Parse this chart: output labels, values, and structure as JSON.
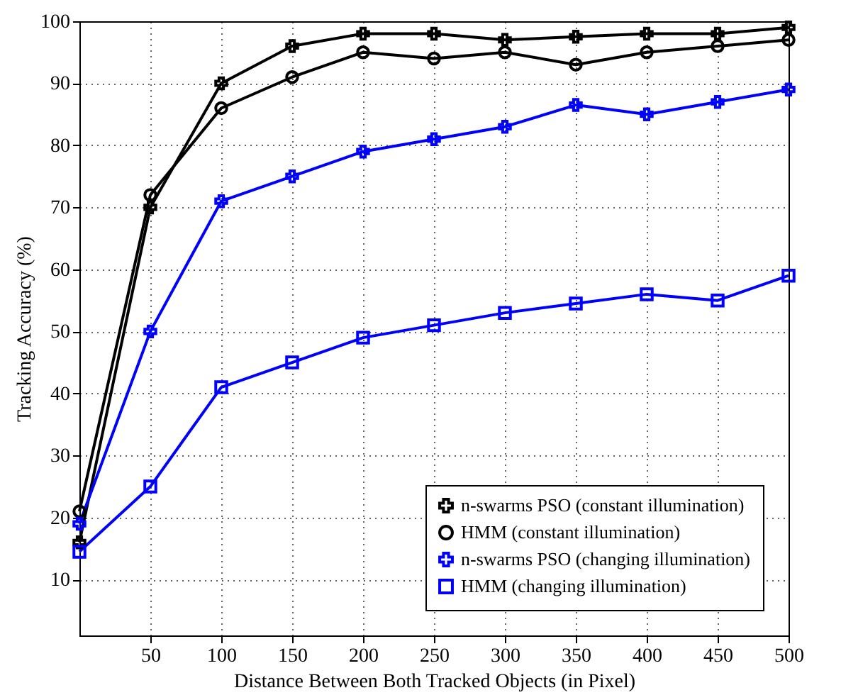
{
  "chart_data": {
    "type": "line",
    "xlabel": "Distance Between Both Tracked Objects (in Pixel)",
    "ylabel": "Tracking Accuracy (%)",
    "x": [
      0,
      50,
      100,
      150,
      200,
      250,
      300,
      350,
      400,
      450,
      500
    ],
    "series": [
      {
        "name": "n-swarms PSO (constant illumination)",
        "color": "#000000",
        "marker": "cross",
        "values": [
          16,
          70,
          90,
          96,
          98,
          98,
          97,
          97.5,
          98,
          98,
          99
        ]
      },
      {
        "name": "HMM (constant illumination)",
        "color": "#000000",
        "marker": "circle",
        "values": [
          21,
          72,
          86,
          91,
          95,
          94,
          95,
          93,
          95,
          96,
          97
        ]
      },
      {
        "name": "n-swarms PSO (changing illumination)",
        "color": "#0000ff",
        "marker": "cross",
        "values": [
          19,
          50,
          71,
          75,
          79,
          81,
          83,
          86.5,
          85,
          87,
          89
        ]
      },
      {
        "name": "HMM (changing illumination)",
        "color": "#0000ff",
        "marker": "square",
        "values": [
          14.5,
          25,
          41,
          45,
          49,
          51,
          53,
          54.5,
          56,
          55,
          59
        ]
      }
    ],
    "xlim": [
      0,
      500
    ],
    "xticks": [
      50,
      100,
      150,
      200,
      250,
      300,
      350,
      400,
      450,
      500
    ],
    "ylim": [
      1,
      100
    ],
    "yticks": [
      10,
      20,
      30,
      40,
      50,
      60,
      70,
      80,
      90,
      100
    ],
    "grid": true,
    "legend": "bottom right",
    "line_style": "solid"
  }
}
